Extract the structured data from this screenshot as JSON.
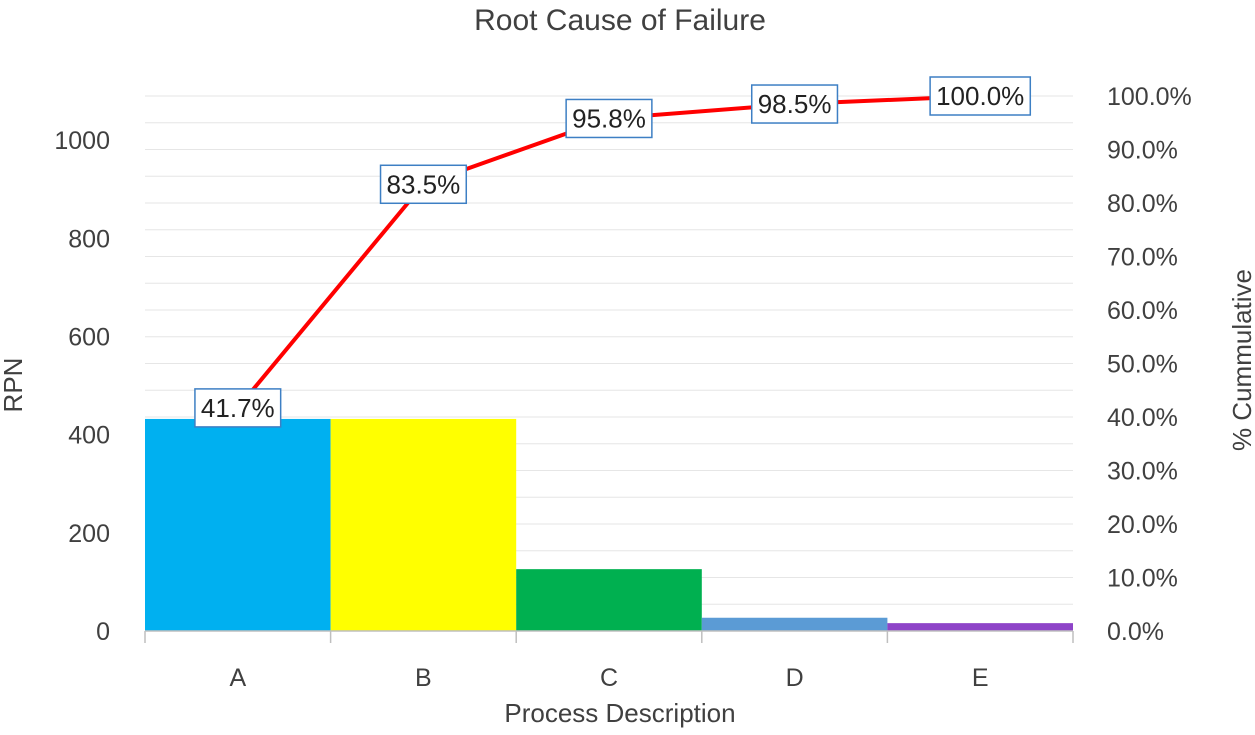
{
  "chart_data": {
    "type": "bar",
    "title": "Root Cause of Failure",
    "xlabel": "Process Description",
    "ylabel": "RPN",
    "y2label": "% Cummulative",
    "categories": [
      "A",
      "B",
      "C",
      "D",
      "E"
    ],
    "series": [
      {
        "name": "RPN",
        "type": "bar",
        "axis": "primary",
        "values": [
          432,
          432,
          126,
          27,
          16
        ],
        "colors": [
          "#00b0f0",
          "#ffff00",
          "#00b050",
          "#5b9bd5",
          "#8e44c8"
        ]
      },
      {
        "name": "% Cummulative",
        "type": "line",
        "axis": "secondary",
        "values": [
          41.7,
          83.5,
          95.8,
          98.5,
          100.0
        ],
        "labels": [
          "41.7%",
          "83.5%",
          "95.8%",
          "98.5%",
          "100.0%"
        ],
        "color": "#ff0000"
      }
    ],
    "ylim": [
      0,
      1150
    ],
    "yticks": [
      0,
      200,
      400,
      600,
      800,
      1000
    ],
    "y2lim": [
      0,
      105
    ],
    "y2ticks": [
      0,
      10,
      20,
      30,
      40,
      50,
      60,
      70,
      80,
      90,
      100
    ],
    "y2ticklabels": [
      "0.0%",
      "10.0%",
      "20.0%",
      "30.0%",
      "40.0%",
      "50.0%",
      "60.0%",
      "70.0%",
      "80.0%",
      "90.0%",
      "100.0%"
    ],
    "grid": true,
    "legend": "none"
  }
}
